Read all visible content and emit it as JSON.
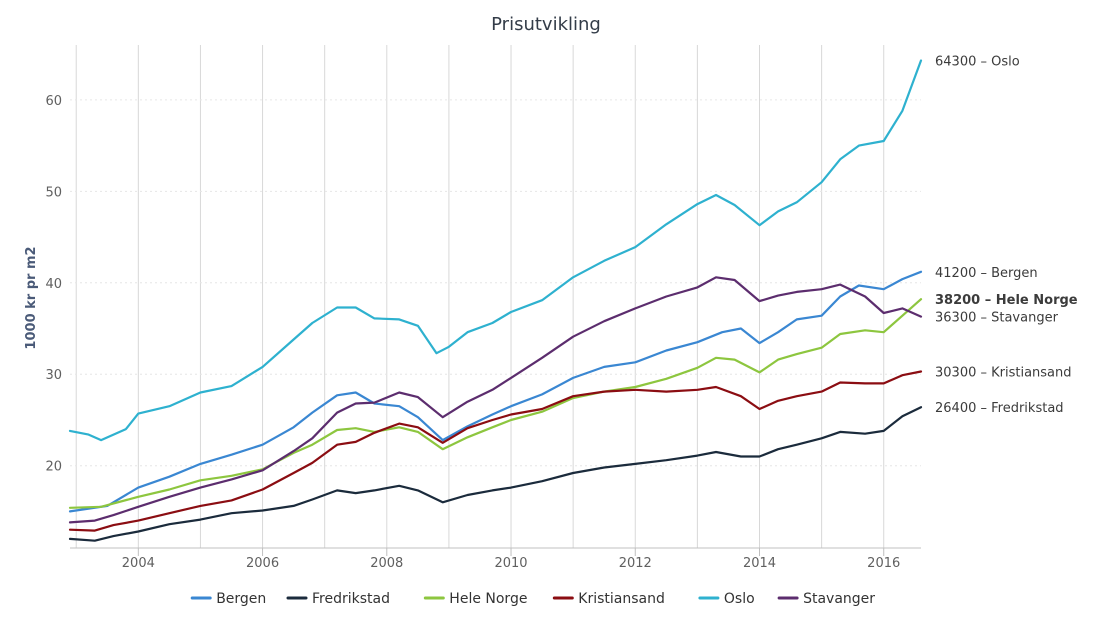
{
  "chart_data": {
    "type": "line",
    "title": "Prisutvikling",
    "xlabel": "",
    "ylabel": "1000 kr pr m2",
    "xlim": [
      2002.9,
      2016.6
    ],
    "ylim": [
      11,
      66
    ],
    "x_ticks": [
      "2004",
      "2006",
      "2008",
      "2010",
      "2012",
      "2014",
      "2016"
    ],
    "y_ticks": [
      "20",
      "30",
      "40",
      "50",
      "60"
    ],
    "grid": "vertical lines at years, dotted horizontal lines",
    "legend": "bottom-center",
    "series": [
      {
        "name": "Bergen",
        "color": "#3a87d2",
        "end_label": "41200 – Bergen",
        "points": [
          [
            2002.9,
            15.0
          ],
          [
            2003.5,
            15.6
          ],
          [
            2004.0,
            17.6
          ],
          [
            2004.5,
            18.8
          ],
          [
            2005.0,
            20.2
          ],
          [
            2005.5,
            21.2
          ],
          [
            2006.0,
            22.3
          ],
          [
            2006.5,
            24.2
          ],
          [
            2006.8,
            25.8
          ],
          [
            2007.2,
            27.7
          ],
          [
            2007.5,
            28.0
          ],
          [
            2007.8,
            26.8
          ],
          [
            2008.2,
            26.5
          ],
          [
            2008.5,
            25.3
          ],
          [
            2008.9,
            22.8
          ],
          [
            2009.3,
            24.3
          ],
          [
            2009.7,
            25.6
          ],
          [
            2010.0,
            26.5
          ],
          [
            2010.5,
            27.8
          ],
          [
            2011.0,
            29.6
          ],
          [
            2011.5,
            30.8
          ],
          [
            2012.0,
            31.3
          ],
          [
            2012.5,
            32.6
          ],
          [
            2013.0,
            33.5
          ],
          [
            2013.4,
            34.6
          ],
          [
            2013.7,
            35.0
          ],
          [
            2014.0,
            33.4
          ],
          [
            2014.3,
            34.6
          ],
          [
            2014.6,
            36.0
          ],
          [
            2015.0,
            36.4
          ],
          [
            2015.3,
            38.5
          ],
          [
            2015.6,
            39.7
          ],
          [
            2016.0,
            39.3
          ],
          [
            2016.3,
            40.4
          ],
          [
            2016.6,
            41.2
          ]
        ]
      },
      {
        "name": "Fredrikstad",
        "color": "#1b2b3c",
        "end_label": "26400 – Fredrikstad",
        "points": [
          [
            2002.9,
            12.0
          ],
          [
            2003.3,
            11.8
          ],
          [
            2003.6,
            12.3
          ],
          [
            2004.0,
            12.8
          ],
          [
            2004.5,
            13.6
          ],
          [
            2005.0,
            14.1
          ],
          [
            2005.5,
            14.8
          ],
          [
            2006.0,
            15.1
          ],
          [
            2006.5,
            15.6
          ],
          [
            2006.8,
            16.3
          ],
          [
            2007.2,
            17.3
          ],
          [
            2007.5,
            17.0
          ],
          [
            2007.8,
            17.3
          ],
          [
            2008.2,
            17.8
          ],
          [
            2008.5,
            17.3
          ],
          [
            2008.9,
            16.0
          ],
          [
            2009.3,
            16.8
          ],
          [
            2009.7,
            17.3
          ],
          [
            2010.0,
            17.6
          ],
          [
            2010.5,
            18.3
          ],
          [
            2011.0,
            19.2
          ],
          [
            2011.5,
            19.8
          ],
          [
            2012.0,
            20.2
          ],
          [
            2012.5,
            20.6
          ],
          [
            2013.0,
            21.1
          ],
          [
            2013.3,
            21.5
          ],
          [
            2013.7,
            21.0
          ],
          [
            2014.0,
            21.0
          ],
          [
            2014.3,
            21.8
          ],
          [
            2014.6,
            22.3
          ],
          [
            2015.0,
            23.0
          ],
          [
            2015.3,
            23.7
          ],
          [
            2015.7,
            23.5
          ],
          [
            2016.0,
            23.8
          ],
          [
            2016.3,
            25.4
          ],
          [
            2016.6,
            26.4
          ]
        ]
      },
      {
        "name": "Hele Norge",
        "color": "#8dc63f",
        "end_label": "38200 – Hele Norge",
        "bold": true,
        "points": [
          [
            2002.9,
            15.4
          ],
          [
            2003.4,
            15.5
          ],
          [
            2004.0,
            16.6
          ],
          [
            2004.5,
            17.4
          ],
          [
            2005.0,
            18.4
          ],
          [
            2005.5,
            18.9
          ],
          [
            2006.0,
            19.6
          ],
          [
            2006.5,
            21.4
          ],
          [
            2006.8,
            22.3
          ],
          [
            2007.2,
            23.9
          ],
          [
            2007.5,
            24.1
          ],
          [
            2007.8,
            23.7
          ],
          [
            2008.2,
            24.2
          ],
          [
            2008.5,
            23.7
          ],
          [
            2008.9,
            21.8
          ],
          [
            2009.3,
            23.1
          ],
          [
            2009.7,
            24.2
          ],
          [
            2010.0,
            25.0
          ],
          [
            2010.5,
            25.9
          ],
          [
            2011.0,
            27.4
          ],
          [
            2011.5,
            28.1
          ],
          [
            2012.0,
            28.6
          ],
          [
            2012.5,
            29.5
          ],
          [
            2013.0,
            30.7
          ],
          [
            2013.3,
            31.8
          ],
          [
            2013.6,
            31.6
          ],
          [
            2014.0,
            30.2
          ],
          [
            2014.3,
            31.6
          ],
          [
            2014.6,
            32.2
          ],
          [
            2015.0,
            32.9
          ],
          [
            2015.3,
            34.4
          ],
          [
            2015.7,
            34.8
          ],
          [
            2016.0,
            34.6
          ],
          [
            2016.3,
            36.4
          ],
          [
            2016.6,
            38.2
          ]
        ]
      },
      {
        "name": "Kristiansand",
        "color": "#8b0d12",
        "end_label": "30300 – Kristiansand",
        "points": [
          [
            2002.9,
            13.0
          ],
          [
            2003.3,
            12.9
          ],
          [
            2003.6,
            13.5
          ],
          [
            2004.0,
            14.0
          ],
          [
            2004.5,
            14.8
          ],
          [
            2005.0,
            15.6
          ],
          [
            2005.5,
            16.2
          ],
          [
            2006.0,
            17.4
          ],
          [
            2006.5,
            19.2
          ],
          [
            2006.8,
            20.3
          ],
          [
            2007.2,
            22.3
          ],
          [
            2007.5,
            22.6
          ],
          [
            2007.8,
            23.6
          ],
          [
            2008.2,
            24.6
          ],
          [
            2008.5,
            24.2
          ],
          [
            2008.9,
            22.5
          ],
          [
            2009.3,
            24.1
          ],
          [
            2009.7,
            25.0
          ],
          [
            2010.0,
            25.6
          ],
          [
            2010.5,
            26.2
          ],
          [
            2011.0,
            27.6
          ],
          [
            2011.5,
            28.1
          ],
          [
            2012.0,
            28.3
          ],
          [
            2012.5,
            28.1
          ],
          [
            2013.0,
            28.3
          ],
          [
            2013.3,
            28.6
          ],
          [
            2013.7,
            27.6
          ],
          [
            2014.0,
            26.2
          ],
          [
            2014.3,
            27.1
          ],
          [
            2014.6,
            27.6
          ],
          [
            2015.0,
            28.1
          ],
          [
            2015.3,
            29.1
          ],
          [
            2015.7,
            29.0
          ],
          [
            2016.0,
            29.0
          ],
          [
            2016.3,
            29.9
          ],
          [
            2016.6,
            30.3
          ]
        ]
      },
      {
        "name": "Oslo",
        "color": "#2eb1cf",
        "end_label": "64300 – Oslo",
        "points": [
          [
            2002.9,
            23.8
          ],
          [
            2003.2,
            23.4
          ],
          [
            2003.4,
            22.8
          ],
          [
            2003.8,
            24.0
          ],
          [
            2004.0,
            25.7
          ],
          [
            2004.5,
            26.5
          ],
          [
            2005.0,
            28.0
          ],
          [
            2005.5,
            28.7
          ],
          [
            2006.0,
            30.8
          ],
          [
            2006.5,
            33.8
          ],
          [
            2006.8,
            35.6
          ],
          [
            2007.2,
            37.3
          ],
          [
            2007.5,
            37.3
          ],
          [
            2007.8,
            36.1
          ],
          [
            2008.2,
            36.0
          ],
          [
            2008.5,
            35.3
          ],
          [
            2008.8,
            32.3
          ],
          [
            2009.0,
            33.0
          ],
          [
            2009.3,
            34.6
          ],
          [
            2009.7,
            35.6
          ],
          [
            2010.0,
            36.8
          ],
          [
            2010.5,
            38.1
          ],
          [
            2011.0,
            40.6
          ],
          [
            2011.5,
            42.4
          ],
          [
            2012.0,
            43.9
          ],
          [
            2012.5,
            46.4
          ],
          [
            2013.0,
            48.6
          ],
          [
            2013.3,
            49.6
          ],
          [
            2013.6,
            48.5
          ],
          [
            2014.0,
            46.3
          ],
          [
            2014.3,
            47.8
          ],
          [
            2014.6,
            48.8
          ],
          [
            2015.0,
            51.0
          ],
          [
            2015.3,
            53.5
          ],
          [
            2015.6,
            55.0
          ],
          [
            2016.0,
            55.5
          ],
          [
            2016.3,
            58.8
          ],
          [
            2016.6,
            64.3
          ]
        ]
      },
      {
        "name": "Stavanger",
        "color": "#5c2d6e",
        "end_label": "36300 – Stavanger",
        "points": [
          [
            2002.9,
            13.8
          ],
          [
            2003.3,
            14.0
          ],
          [
            2003.6,
            14.6
          ],
          [
            2004.0,
            15.5
          ],
          [
            2004.5,
            16.6
          ],
          [
            2005.0,
            17.6
          ],
          [
            2005.5,
            18.5
          ],
          [
            2006.0,
            19.5
          ],
          [
            2006.5,
            21.6
          ],
          [
            2006.8,
            23.0
          ],
          [
            2007.2,
            25.8
          ],
          [
            2007.5,
            26.8
          ],
          [
            2007.8,
            26.9
          ],
          [
            2008.2,
            28.0
          ],
          [
            2008.5,
            27.5
          ],
          [
            2008.9,
            25.3
          ],
          [
            2009.3,
            27.0
          ],
          [
            2009.7,
            28.3
          ],
          [
            2010.0,
            29.6
          ],
          [
            2010.5,
            31.8
          ],
          [
            2011.0,
            34.1
          ],
          [
            2011.5,
            35.8
          ],
          [
            2012.0,
            37.2
          ],
          [
            2012.5,
            38.5
          ],
          [
            2013.0,
            39.5
          ],
          [
            2013.3,
            40.6
          ],
          [
            2013.6,
            40.3
          ],
          [
            2014.0,
            38.0
          ],
          [
            2014.3,
            38.6
          ],
          [
            2014.6,
            39.0
          ],
          [
            2015.0,
            39.3
          ],
          [
            2015.3,
            39.8
          ],
          [
            2015.7,
            38.5
          ],
          [
            2016.0,
            36.7
          ],
          [
            2016.3,
            37.2
          ],
          [
            2016.6,
            36.3
          ]
        ]
      }
    ]
  }
}
